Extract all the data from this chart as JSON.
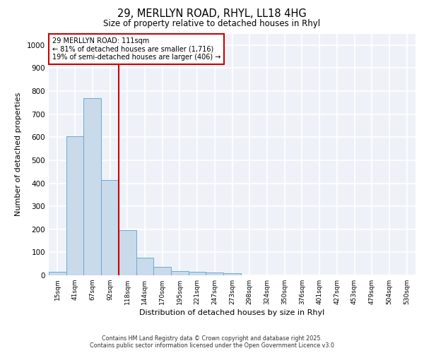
{
  "title_line1": "29, MERLLYN ROAD, RHYL, LL18 4HG",
  "title_line2": "Size of property relative to detached houses in Rhyl",
  "xlabel": "Distribution of detached houses by size in Rhyl",
  "ylabel": "Number of detached properties",
  "categories": [
    "15sqm",
    "41sqm",
    "67sqm",
    "92sqm",
    "118sqm",
    "144sqm",
    "170sqm",
    "195sqm",
    "221sqm",
    "247sqm",
    "273sqm",
    "298sqm",
    "324sqm",
    "350sqm",
    "376sqm",
    "401sqm",
    "427sqm",
    "453sqm",
    "479sqm",
    "504sqm",
    "530sqm"
  ],
  "values": [
    15,
    605,
    770,
    415,
    195,
    78,
    38,
    18,
    15,
    12,
    10,
    0,
    0,
    0,
    0,
    0,
    0,
    0,
    0,
    0,
    0
  ],
  "bar_color": "#c9daea",
  "bar_edge_color": "#6aaad4",
  "annotation_line1": "29 MERLLYN ROAD: 111sqm",
  "annotation_line2": "← 81% of detached houses are smaller (1,716)",
  "annotation_line3": "19% of semi-detached houses are larger (406) →",
  "annotation_box_facecolor": "#ffffff",
  "annotation_box_edgecolor": "#cc0000",
  "vline_x_index": 4,
  "vline_color": "#cc0000",
  "ylim": [
    0,
    1050
  ],
  "yticks": [
    0,
    100,
    200,
    300,
    400,
    500,
    600,
    700,
    800,
    900,
    1000
  ],
  "bg_color": "#eef2f8",
  "grid_color": "#ffffff",
  "footer_line1": "Contains HM Land Registry data © Crown copyright and database right 2025.",
  "footer_line2": "Contains public sector information licensed under the Open Government Licence v3.0"
}
